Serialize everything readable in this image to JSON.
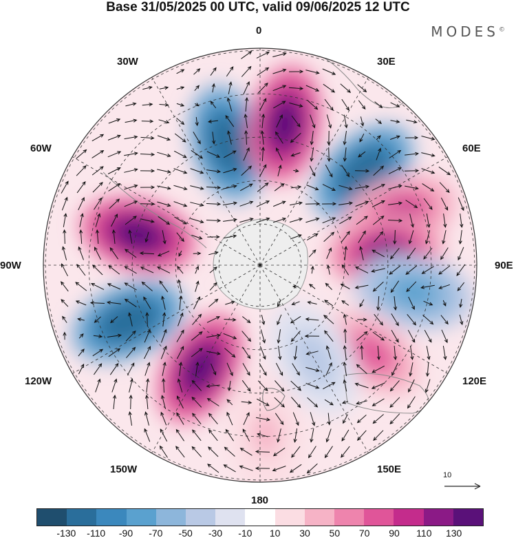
{
  "title": "Base 31/05/2025 00 UTC, valid 09/06/2025 12 UTC",
  "brand": "MODES",
  "brand_mark": "©",
  "longitude_labels": {
    "lon0": "0",
    "lon30e": "30E",
    "lon60e": "60E",
    "lon90e": "90E",
    "lon120e": "120E",
    "lon150e": "150E",
    "lon180": "180",
    "lon150w": "150W",
    "lon120w": "120W",
    "lon90w": "90W",
    "lon60w": "60W",
    "lon30w": "30W"
  },
  "vector_reference": "10",
  "colorbar": {
    "colors": [
      "#1f4e6e",
      "#2a6e9b",
      "#3b88bd",
      "#5aa1cf",
      "#8db6db",
      "#b9c9e5",
      "#dfe2f0",
      "#ffffff",
      "#fbdde3",
      "#f6b3c6",
      "#ee84ad",
      "#e05599",
      "#c42c8c",
      "#8b1a86",
      "#5a1179"
    ],
    "ticks": [
      "-130",
      "-110",
      "-90",
      "-70",
      "-50",
      "-30",
      "-10",
      "10",
      "30",
      "50",
      "70",
      "90",
      "110",
      "130"
    ]
  },
  "anomalies": [
    {
      "lon": 345,
      "colat": 0.58,
      "v": -130
    },
    {
      "lon": 10,
      "colat": 0.66,
      "v": 130
    },
    {
      "lon": 48,
      "colat": 0.64,
      "v": -130
    },
    {
      "lon": 70,
      "colat": 0.68,
      "v": 90
    },
    {
      "lon": 84,
      "colat": 0.58,
      "v": 120
    },
    {
      "lon": 100,
      "colat": 0.72,
      "v": -80
    },
    {
      "lon": 128,
      "colat": 0.66,
      "v": 70
    },
    {
      "lon": 150,
      "colat": 0.5,
      "v": -40
    },
    {
      "lon": 210,
      "colat": 0.55,
      "v": 130
    },
    {
      "lon": 247,
      "colat": 0.66,
      "v": -130
    },
    {
      "lon": 284,
      "colat": 0.58,
      "v": 130
    },
    {
      "lon": 178,
      "colat": 0.78,
      "v": 30
    }
  ]
}
